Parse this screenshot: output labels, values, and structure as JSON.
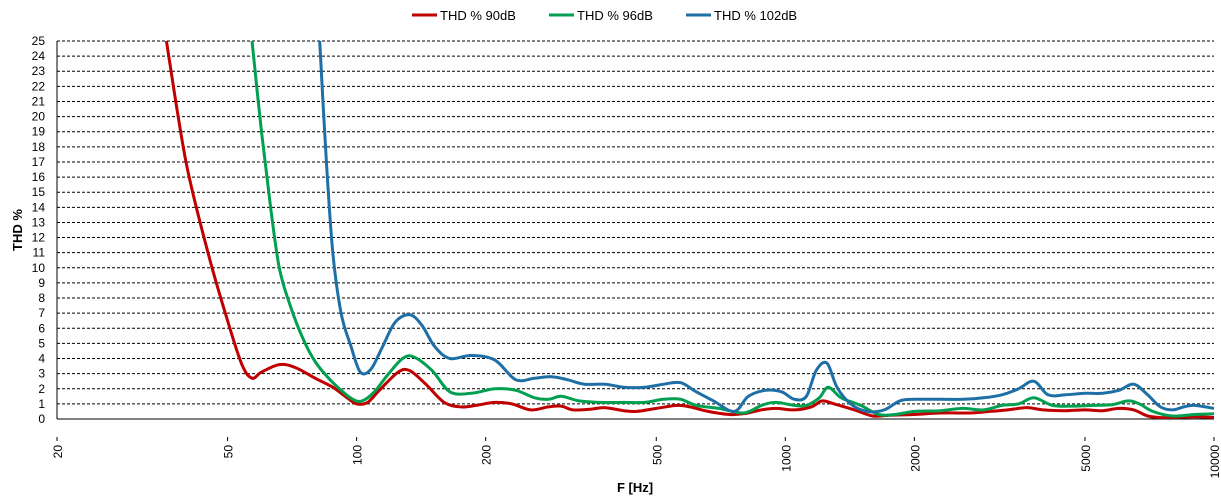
{
  "chart_data": {
    "type": "line",
    "title": "",
    "xlabel": "F [Hz]",
    "ylabel": "THD %",
    "xscale": "log",
    "xlim": [
      20,
      10000
    ],
    "ylim": [
      0,
      25
    ],
    "grid": "horizontal dashed",
    "legend_position": "top-center",
    "x_tick_labels": [
      "20",
      "50",
      "100",
      "200",
      "500",
      "1000",
      "2000",
      "5000",
      "10000"
    ],
    "x_tick_values": [
      20,
      50,
      100,
      200,
      500,
      1000,
      2000,
      5000,
      10000
    ],
    "y_tick_labels": [
      "0",
      "1",
      "2",
      "3",
      "4",
      "5",
      "6",
      "7",
      "8",
      "9",
      "10",
      "11",
      "12",
      "13",
      "14",
      "15",
      "16",
      "17",
      "18",
      "19",
      "20",
      "21",
      "22",
      "23",
      "24",
      "25"
    ],
    "series": [
      {
        "name": "THD % 90dB",
        "color": "#c00000",
        "x": [
          36,
          40,
          45,
          50,
          54,
          57,
          60,
          66,
          72,
          80,
          88,
          95,
          100,
          106,
          113,
          125,
          133,
          145,
          160,
          175,
          190,
          210,
          230,
          255,
          280,
          300,
          320,
          350,
          380,
          420,
          450,
          500,
          560,
          600,
          660,
          740,
          800,
          880,
          950,
          1050,
          1150,
          1220,
          1300,
          1450,
          1600,
          1750,
          2000,
          2300,
          2700,
          3000,
          3300,
          3500,
          3700,
          4000,
          4500,
          5000,
          5500,
          6000,
          6500,
          7000,
          7500,
          8000,
          9000,
          10000
        ],
        "y": [
          25,
          17,
          11,
          6.5,
          3.6,
          2.7,
          3.1,
          3.6,
          3.4,
          2.7,
          2.1,
          1.4,
          1.0,
          1.1,
          1.9,
          3.1,
          3.2,
          2.3,
          1.1,
          0.8,
          0.9,
          1.1,
          1.0,
          0.6,
          0.8,
          0.85,
          0.6,
          0.65,
          0.75,
          0.55,
          0.5,
          0.7,
          0.9,
          0.8,
          0.5,
          0.3,
          0.35,
          0.6,
          0.7,
          0.6,
          0.8,
          1.2,
          1.0,
          0.6,
          0.2,
          0.25,
          0.3,
          0.4,
          0.4,
          0.5,
          0.6,
          0.7,
          0.75,
          0.6,
          0.55,
          0.6,
          0.55,
          0.7,
          0.6,
          0.2,
          0.1,
          0.1,
          0.15,
          0.1
        ]
      },
      {
        "name": "THD % 96dB",
        "color": "#00a050",
        "x": [
          57,
          60,
          63,
          66,
          70,
          75,
          80,
          86,
          92,
          98,
          103,
          110,
          118,
          128,
          136,
          150,
          165,
          185,
          210,
          235,
          260,
          280,
          300,
          330,
          370,
          420,
          470,
          520,
          570,
          620,
          700,
          800,
          880,
          950,
          1050,
          1120,
          1200,
          1260,
          1350,
          1500,
          1650,
          1800,
          2000,
          2300,
          2600,
          2900,
          3200,
          3500,
          3800,
          4200,
          4700,
          5200,
          5800,
          6300,
          6700,
          7200,
          8000,
          9000,
          10000
        ],
        "y": [
          25,
          19,
          14,
          10,
          7.5,
          5.3,
          3.8,
          2.7,
          1.9,
          1.3,
          1.2,
          1.8,
          2.9,
          4.0,
          4.1,
          3.2,
          1.8,
          1.7,
          2.0,
          1.9,
          1.4,
          1.3,
          1.5,
          1.2,
          1.1,
          1.1,
          1.1,
          1.3,
          1.3,
          0.9,
          0.7,
          0.4,
          0.9,
          1.1,
          0.9,
          0.9,
          1.4,
          2.1,
          1.4,
          0.9,
          0.3,
          0.3,
          0.5,
          0.55,
          0.7,
          0.6,
          0.9,
          1.0,
          1.4,
          0.9,
          0.85,
          0.9,
          0.95,
          1.2,
          1.0,
          0.5,
          0.2,
          0.3,
          0.35
        ]
      },
      {
        "name": "THD % 102dB",
        "color": "#1f6fa7",
        "x": [
          82,
          85,
          88,
          92,
          97,
          102,
          108,
          115,
          123,
          133,
          142,
          152,
          165,
          185,
          210,
          235,
          260,
          285,
          310,
          340,
          380,
          420,
          470,
          520,
          570,
          620,
          680,
          760,
          820,
          900,
          980,
          1050,
          1120,
          1180,
          1250,
          1320,
          1420,
          1550,
          1700,
          1850,
          2000,
          2300,
          2600,
          2900,
          3200,
          3500,
          3800,
          4100,
          4500,
          5000,
          5500,
          6000,
          6500,
          7000,
          7500,
          8000,
          8500,
          9000,
          10000
        ],
        "y": [
          25,
          17,
          11,
          7,
          4.8,
          3.1,
          3.3,
          4.8,
          6.4,
          6.9,
          6.2,
          4.8,
          4.0,
          4.2,
          3.9,
          2.6,
          2.7,
          2.8,
          2.6,
          2.3,
          2.3,
          2.1,
          2.1,
          2.3,
          2.4,
          1.8,
          1.2,
          0.5,
          1.5,
          1.9,
          1.8,
          1.3,
          1.5,
          3.2,
          3.7,
          2.1,
          1.0,
          0.5,
          0.6,
          1.2,
          1.3,
          1.3,
          1.3,
          1.4,
          1.6,
          2.0,
          2.5,
          1.6,
          1.6,
          1.7,
          1.7,
          1.9,
          2.3,
          1.6,
          0.8,
          0.6,
          0.8,
          0.9,
          0.7
        ]
      }
    ]
  }
}
